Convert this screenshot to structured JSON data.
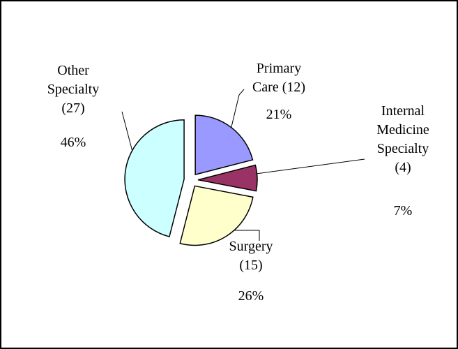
{
  "chart_data": {
    "type": "pie",
    "categories": [
      "Primary Care (12)",
      "Internal Medicine Specialty (4)",
      "Surgery (15)",
      "Other Specialty (27)"
    ],
    "values": [
      21,
      7,
      26,
      46
    ],
    "value_labels": [
      "21%",
      "7%",
      "26%",
      "46%"
    ],
    "colors": [
      "#9999ff",
      "#993366",
      "#ffffcc",
      "#ccffff"
    ]
  }
}
